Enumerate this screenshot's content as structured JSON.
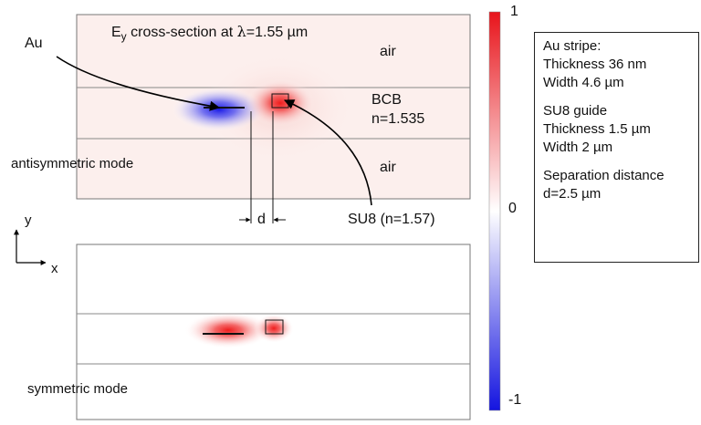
{
  "figure": {
    "title_main": "E",
    "title_sub": "y",
    "title_rest": " cross-section at ",
    "title_lambda": "λ",
    "title_value": "=1.55 µm"
  },
  "labels": {
    "au": "Au",
    "air_top": "air",
    "bcb": "BCB",
    "bcb_index": "n=1.535",
    "air_bottom": "air",
    "antisymmetric": "antisymmetric mode",
    "symmetric": "symmetric mode",
    "su8": "SU8 (n=1.57)",
    "d": "d",
    "axis_y": "y",
    "axis_x": "x"
  },
  "colorbar": {
    "max": "1",
    "mid": "0",
    "min": "-1",
    "colors": {
      "positive": "#e8141b",
      "zero": "#ffffff",
      "negative": "#1414e0"
    }
  },
  "info": {
    "au_title": "Au stripe:",
    "au_thickness": "Thickness 36 nm",
    "au_width": "Width 4.6 µm",
    "su8_title": "SU8 guide",
    "su8_thickness": "Thickness 1.5 µm",
    "su8_width": "Width 2 µm",
    "sep_title": "Separation distance",
    "sep_value": "d=2.5 µm"
  }
}
